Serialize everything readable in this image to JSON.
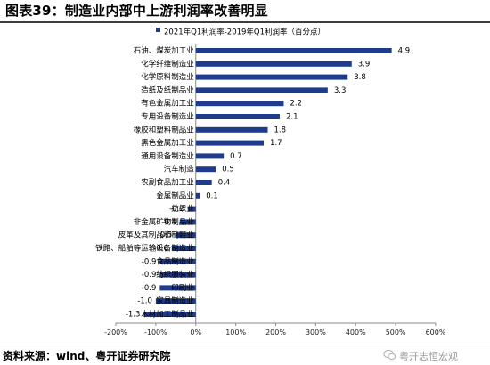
{
  "header": {
    "title": "图表39：制造业内部中上游利润率改善明显"
  },
  "footer": {
    "source": "资料来源：wind、粤开证券研究院",
    "watermark": "粤开志恒宏观"
  },
  "colors": {
    "bar": "#1f3b8c",
    "axis": "#8a8a8a"
  },
  "icons": {
    "watermark": "wechat-icon"
  },
  "chart_data": {
    "type": "bar",
    "orientation": "horizontal",
    "legend": "top-center",
    "series": [
      {
        "name": "2021年Q1利润率-2019年Q1利润率（百分点）"
      }
    ],
    "categories": [
      "石油、煤炭加工业",
      "化学纤维制造业",
      "化学原料制造业",
      "造纸及纸制品业",
      "有色金属加工业",
      "专用设备制造业",
      "橡胶和塑料制品业",
      "黑色金属加工业",
      "通用设备制造业",
      "汽车制造",
      "农副食品加工业",
      "金属制品业",
      "纺织业",
      "非金属矿物制品业",
      "皮革及其制品和制鞋业",
      "铁路、船舶等运输设备制造业",
      "食品制造业",
      "纺织服装业",
      "印刷业",
      "家具制造业",
      "木材加工制品业"
    ],
    "values": [
      4.9,
      3.9,
      3.8,
      3.3,
      2.2,
      2.1,
      1.8,
      1.7,
      0.7,
      0.5,
      0.4,
      0.1,
      -0.2,
      -0.4,
      -0.5,
      -0.6,
      -0.9,
      -0.9,
      -0.9,
      -1.0,
      -1.3
    ],
    "value_labels": [
      "4.9",
      "3.9",
      "3.8",
      "3.3",
      "2.2",
      "2.1",
      "1.8",
      "1.7",
      "0.7",
      "0.5",
      "0.4",
      "0.1",
      "-0.2",
      "-0.4",
      "-0.5",
      "-0.6",
      "-0.9",
      "-0.9",
      "-0.9",
      "-1.0",
      "-1.3"
    ],
    "xlim": [
      -2,
      6
    ],
    "xticks": [
      -2,
      -1,
      0,
      1,
      2,
      3,
      4,
      5,
      6
    ],
    "xtick_labels": [
      "-200%",
      "-100%",
      "0%",
      "100%",
      "200%",
      "300%",
      "400%",
      "500%",
      "600%"
    ],
    "grid": false
  }
}
